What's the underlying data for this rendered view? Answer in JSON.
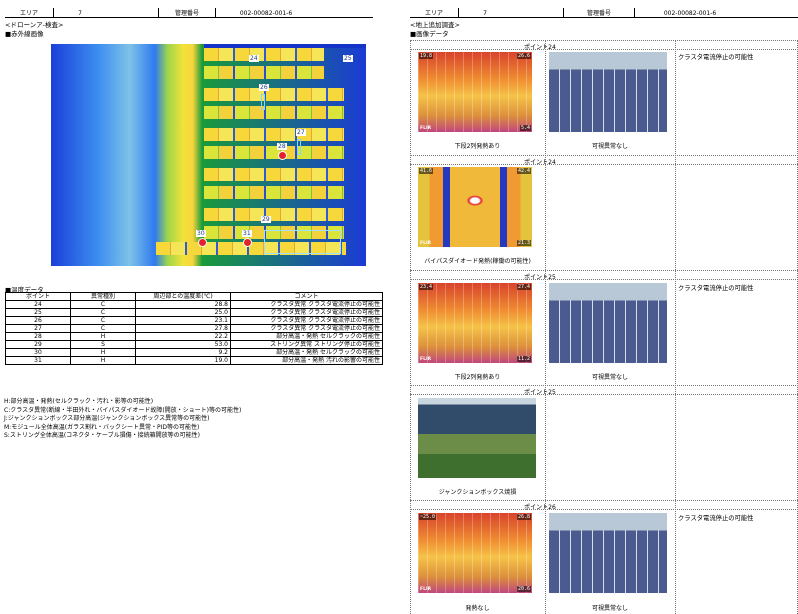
{
  "left": {
    "header": {
      "area_label": "エリア",
      "area_value": "7",
      "id_label": "管理番号",
      "id_value": "002-00082-001-6"
    },
    "section_title": "<ドローンア-検査>",
    "ir_title": "■赤外線画像",
    "thermal_points": [
      "24",
      "25",
      "26",
      "27",
      "28",
      "29",
      "30",
      "31"
    ],
    "temp_title": "■温度データ",
    "table_headers": {
      "point": "ポイント",
      "type": "異常種別",
      "diff": "周辺部との温度差(℃)",
      "comment": "コメント"
    },
    "rows": [
      {
        "point": "24",
        "type": "C",
        "diff": "28.8",
        "comment": "クラスタ異常 クラスタ電流停止の可能性"
      },
      {
        "point": "25",
        "type": "C",
        "diff": "25.0",
        "comment": "クラスタ異常 クラスタ電流停止の可能性"
      },
      {
        "point": "26",
        "type": "C",
        "diff": "23.1",
        "comment": "クラスタ異常 クラスタ電流停止の可能性"
      },
      {
        "point": "27",
        "type": "C",
        "diff": "27.8",
        "comment": "クラスタ異常 クラスタ電流停止の可能性"
      },
      {
        "point": "28",
        "type": "H",
        "diff": "22.2",
        "comment": "部分高温・発熱 セルクラックの可能性"
      },
      {
        "point": "29",
        "type": "S",
        "diff": "53.0",
        "comment": "ストリング異常 ストリング停止の可能性"
      },
      {
        "point": "30",
        "type": "H",
        "diff": "9.2",
        "comment": "部分高温・発熱 セルクラックの可能性"
      },
      {
        "point": "31",
        "type": "H",
        "diff": "19.0",
        "comment": "部分高温・発熱 汚れの影響の可能性"
      }
    ],
    "legend": [
      "H:部分高温・発熱(セルクラック・汚れ・影等の可能性)",
      "C:クラスタ異常(断線・半田外れ・バイパスダイオード故障(開放・ショート)等の可能性)",
      "J:ジャンクションボックス部分高温(ジャンクションボックス異常等の可能性)",
      "M:モジュール全体高温(ガラス割れ・バックシート異常・PID等の可能性)",
      "S:ストリング全体高温(コネクタ・ケーブル損傷・接続箱開放等の可能性)"
    ]
  },
  "right": {
    "header": {
      "area_label": "エリア",
      "area_value": "7",
      "id_label": "管理番号",
      "id_value": "002-00082-001-6"
    },
    "section_title": "<地上追加調査>",
    "image_title": "■画像データ",
    "flir": "FLIR",
    "blocks": [
      {
        "title": "ポイント24",
        "temp_top": "19.8",
        "temp_max": "26.6",
        "temp_min": "5.4",
        "caption1": "下段2列発熱あり",
        "caption2": "可視異常なし",
        "comment": "クラスタ電流停止の可能性"
      },
      {
        "title": "ポイント24",
        "temp_top": "41.6",
        "temp_max": "42.4",
        "temp_min": "21.3",
        "caption1": "バイパスダイオード発熱(稼働の可能性)",
        "caption2": "",
        "comment": ""
      },
      {
        "title": "ポイント25",
        "temp_top": "23.4",
        "temp_max": "27.4",
        "temp_min": "11.2",
        "caption1": "下段2列発熱あり",
        "caption2": "可視異常なし",
        "comment": "クラスタ電流停止の可能性"
      },
      {
        "title": "ポイント25",
        "caption1": "ジャンクションボックス焼損",
        "caption2": "",
        "comment": ""
      },
      {
        "title": "ポイント26",
        "temp_top": "~25.0",
        "temp_max": "26.8",
        "temp_min": "20.6",
        "caption1": "発熱なし",
        "caption2": "可視異常なし",
        "comment": "クラスタ電流停止の可能性"
      }
    ]
  },
  "colors": {
    "hot_spot": "#e2212a",
    "cold": "#1a3fd9",
    "warm": "#f7d83a"
  }
}
